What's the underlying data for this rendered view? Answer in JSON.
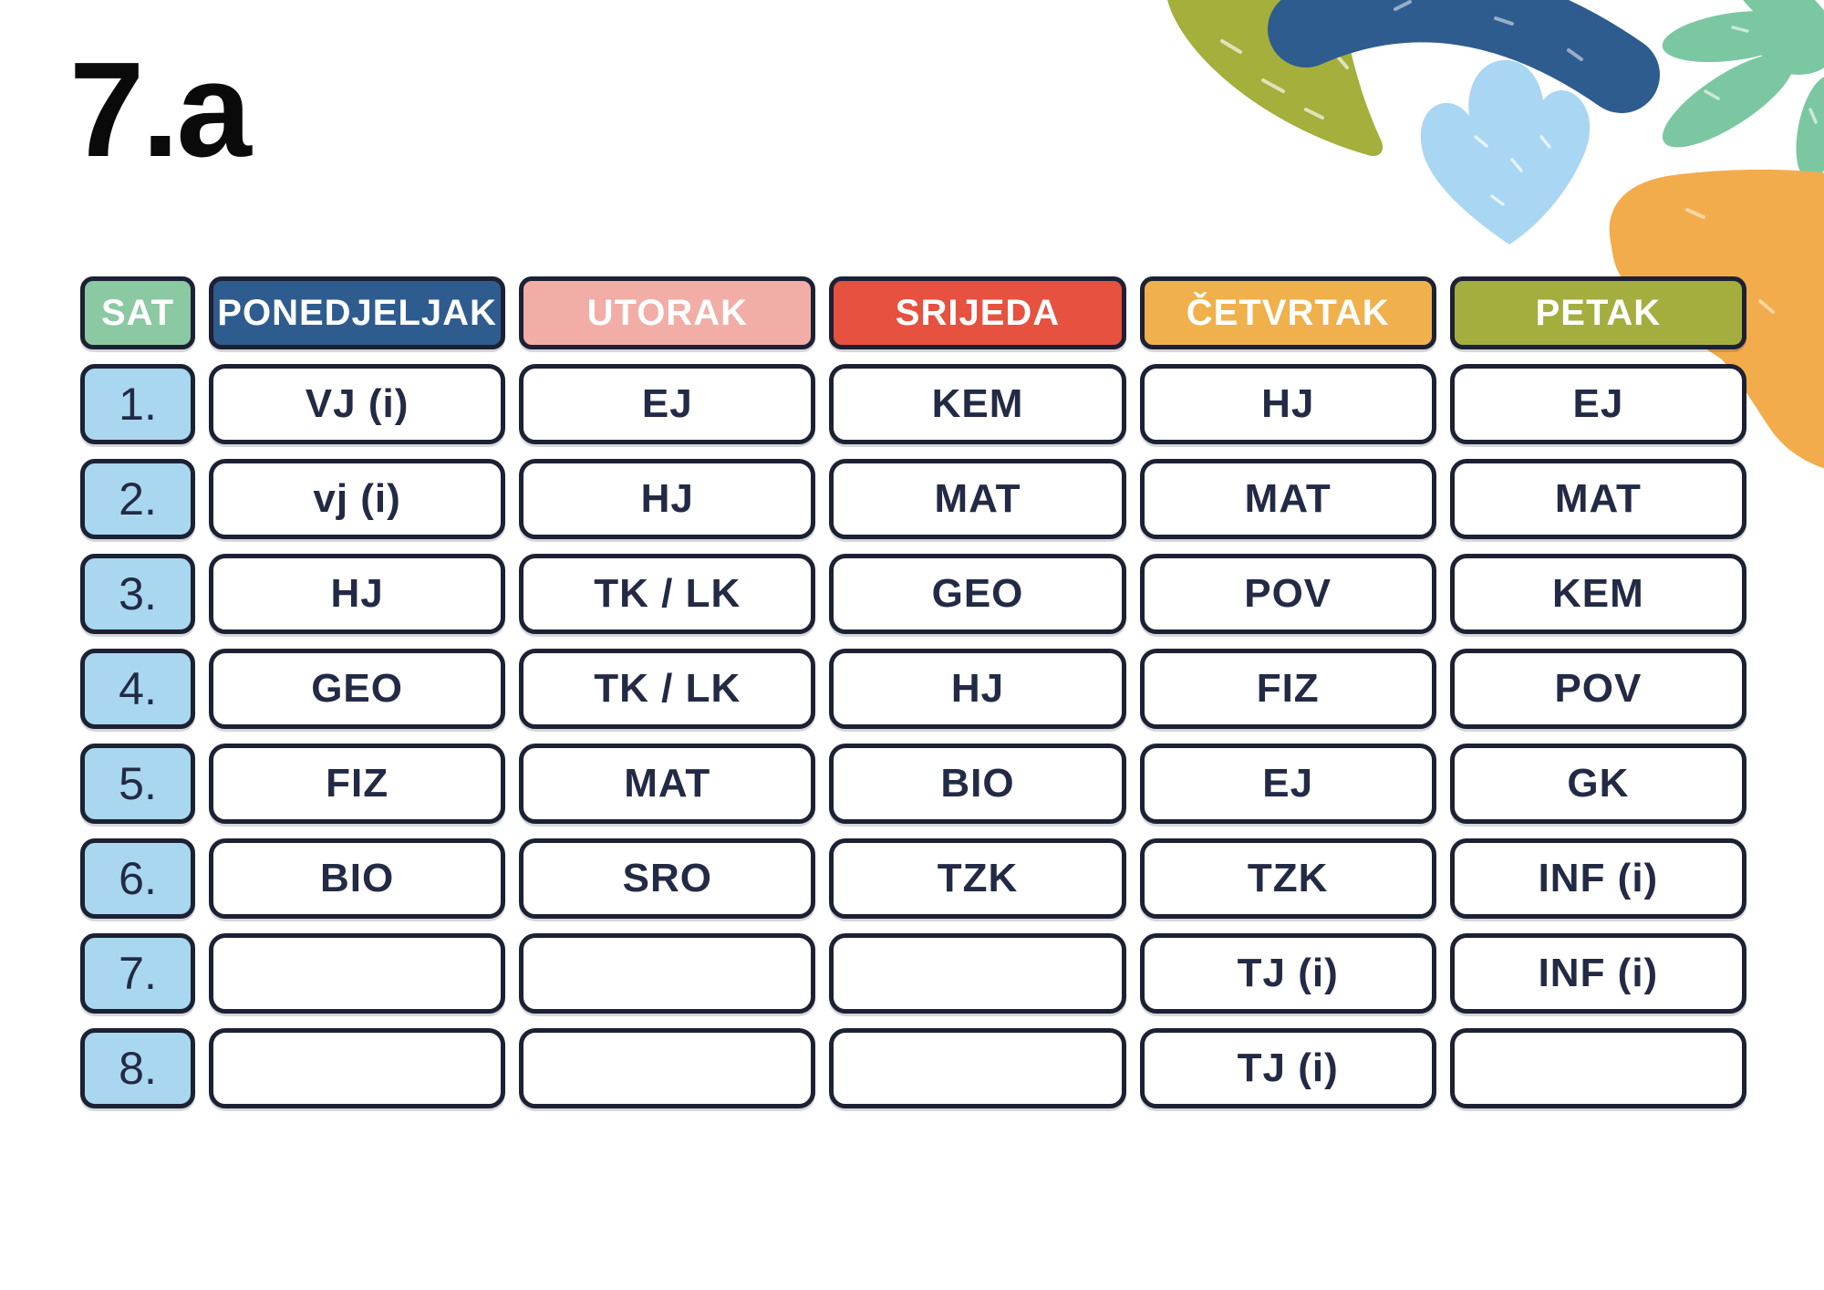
{
  "page": {
    "title": "7.a",
    "background": "#FFFFFF"
  },
  "timetable": {
    "corner_label": "SAT",
    "corner_color": "#8BC9A2",
    "period_color": "#A9D7EF",
    "border_color": "#1C2134",
    "text_color": "#232A45",
    "header_text_color": "#FFFFFF",
    "days": [
      {
        "label": "PONEDJELJAK",
        "color": "#2E5C8F"
      },
      {
        "label": "UTORAK",
        "color": "#F2ADA7"
      },
      {
        "label": "SRIJEDA",
        "color": "#E65140"
      },
      {
        "label": "ČETVRTAK",
        "color": "#F0B04C"
      },
      {
        "label": "PETAK",
        "color": "#A3AE3E"
      }
    ],
    "periods": [
      "1.",
      "2.",
      "3.",
      "4.",
      "5.",
      "6.",
      "7.",
      "8."
    ],
    "rows": [
      [
        "VJ (i)",
        "EJ",
        "KEM",
        "HJ",
        "EJ"
      ],
      [
        "vj (i)",
        "HJ",
        "MAT",
        "MAT",
        "MAT"
      ],
      [
        "HJ",
        "TK / LK",
        "GEO",
        "POV",
        "KEM"
      ],
      [
        "GEO",
        "TK / LK",
        "HJ",
        "FIZ",
        "POV"
      ],
      [
        "FIZ",
        "MAT",
        "BIO",
        "EJ",
        "GK"
      ],
      [
        "BIO",
        "SRO",
        "TZK",
        "TZK",
        "INF (i)"
      ],
      [
        "",
        "",
        "",
        "TJ (i)",
        "INF (i)"
      ],
      [
        "",
        "",
        "",
        "TJ (i)",
        ""
      ]
    ]
  },
  "decorations": {
    "olive_leaf": "#A4AF3C",
    "blue_arch": "#2E5C8F",
    "light_blue_sprout": "#A9D6F2",
    "green_palm": "#7BC7A1",
    "orange_blob": "#F3AC4B",
    "speckle": "#FFFFFF"
  }
}
